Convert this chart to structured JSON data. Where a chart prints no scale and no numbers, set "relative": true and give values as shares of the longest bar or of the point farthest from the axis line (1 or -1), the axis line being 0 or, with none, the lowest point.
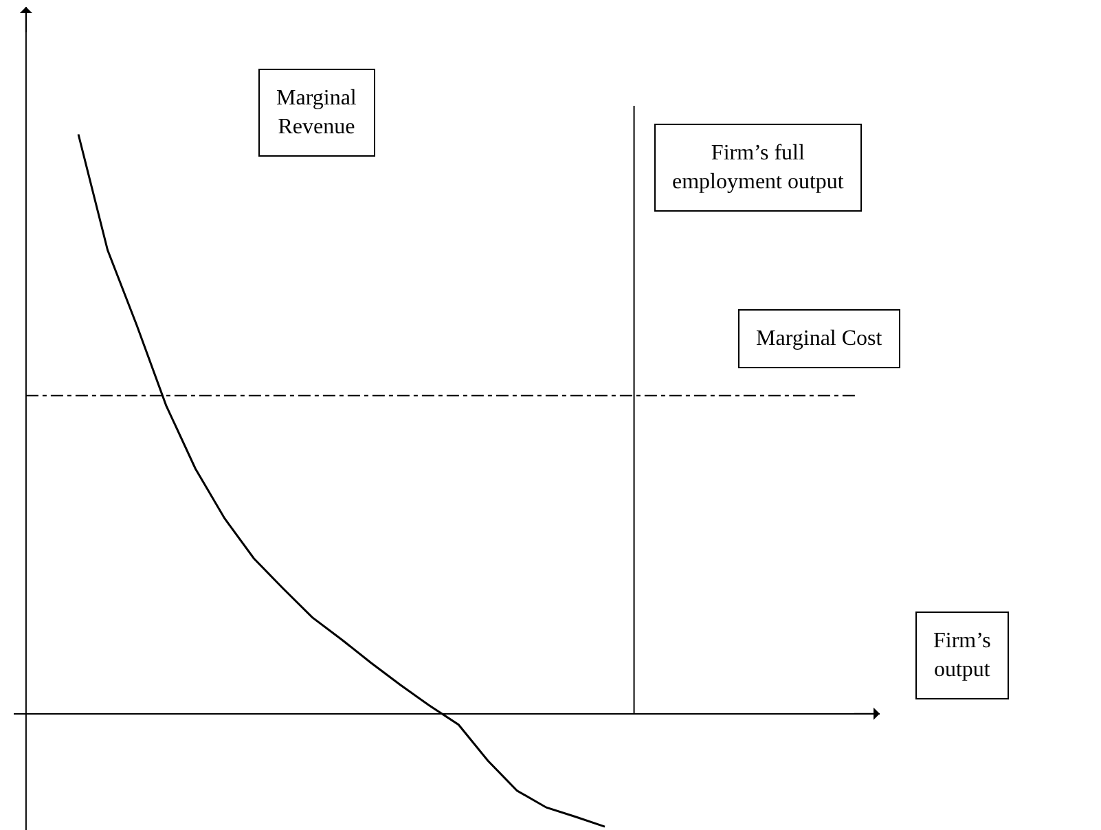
{
  "chart_data": {
    "type": "line",
    "relative": true,
    "grid": false,
    "legend": false,
    "marker": "none",
    "line_style": "solid",
    "categories": [
      null,
      null,
      null,
      null,
      null,
      null,
      null,
      null,
      null,
      null,
      null,
      null,
      null,
      null,
      null,
      null,
      null,
      null,
      null
    ],
    "series": [
      {
        "color": "#000000",
        "values": [
          1.0,
          0.8,
          0.67,
          0.532,
          0.423,
          0.337,
          0.268,
          0.216,
          0.166,
          0.128,
          0.088,
          0.05,
          0.014,
          -0.019,
          -0.081,
          -0.133,
          -0.162,
          -0.178,
          -0.195
        ]
      }
    ],
    "ref_lines": [
      {
        "axis": "y",
        "value": 0.549,
        "label": "Marginal Cost",
        "color": "#000000",
        "line_style": "dashed"
      }
    ],
    "annotations": [
      "Marginal\nRevenue",
      "Firm’s full\nemployment output",
      "Firm’s\noutput"
    ]
  }
}
